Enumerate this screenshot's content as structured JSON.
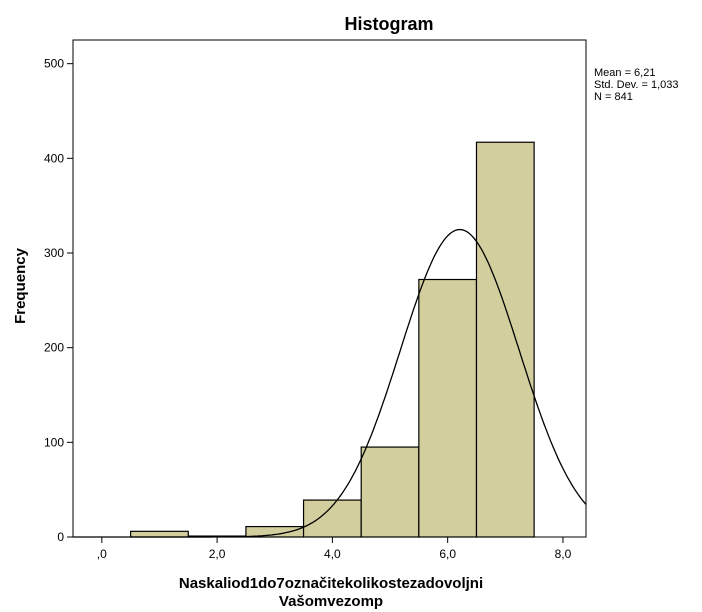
{
  "chart_data": {
    "type": "bar",
    "title": "Histogram",
    "xlabel_lines": [
      "Naskaliod1do7označitekolikostezadovoljni",
      "Vašomvezomp"
    ],
    "ylabel": "Frequency",
    "bins": [
      {
        "from": 0.5,
        "to": 1.5,
        "value": 6
      },
      {
        "from": 1.5,
        "to": 2.5,
        "value": 1
      },
      {
        "from": 2.5,
        "to": 3.5,
        "value": 11
      },
      {
        "from": 3.5,
        "to": 4.5,
        "value": 39
      },
      {
        "from": 4.5,
        "to": 5.5,
        "value": 95
      },
      {
        "from": 5.5,
        "to": 6.5,
        "value": 272
      },
      {
        "from": 6.5,
        "to": 7.5,
        "value": 417
      }
    ],
    "xlim": [
      -0.5,
      8.4
    ],
    "ylim": [
      0,
      525
    ],
    "x_ticks": [
      {
        "value": 0,
        "label": ",0"
      },
      {
        "value": 2,
        "label": "2,0"
      },
      {
        "value": 4,
        "label": "4,0"
      },
      {
        "value": 6,
        "label": "6,0"
      },
      {
        "value": 8,
        "label": "8,0"
      }
    ],
    "y_ticks": [
      {
        "value": 0,
        "label": "0"
      },
      {
        "value": 100,
        "label": "100"
      },
      {
        "value": 200,
        "label": "200"
      },
      {
        "value": 300,
        "label": "300"
      },
      {
        "value": 400,
        "label": "400"
      },
      {
        "value": 500,
        "label": "500"
      }
    ],
    "normal_curve": {
      "mean": 6.21,
      "sd": 1.033,
      "n": 841,
      "bin_width": 1
    },
    "stats_lines": {
      "mean": "Mean = 6,21",
      "sd": "Std. Dev. = 1,033",
      "n": "N = 841"
    },
    "colors": {
      "bar_fill": "#d3ce9d",
      "bar_stroke": "#000000",
      "plot_bg": "#ffffff",
      "curve": "#000000"
    },
    "grid": false
  }
}
